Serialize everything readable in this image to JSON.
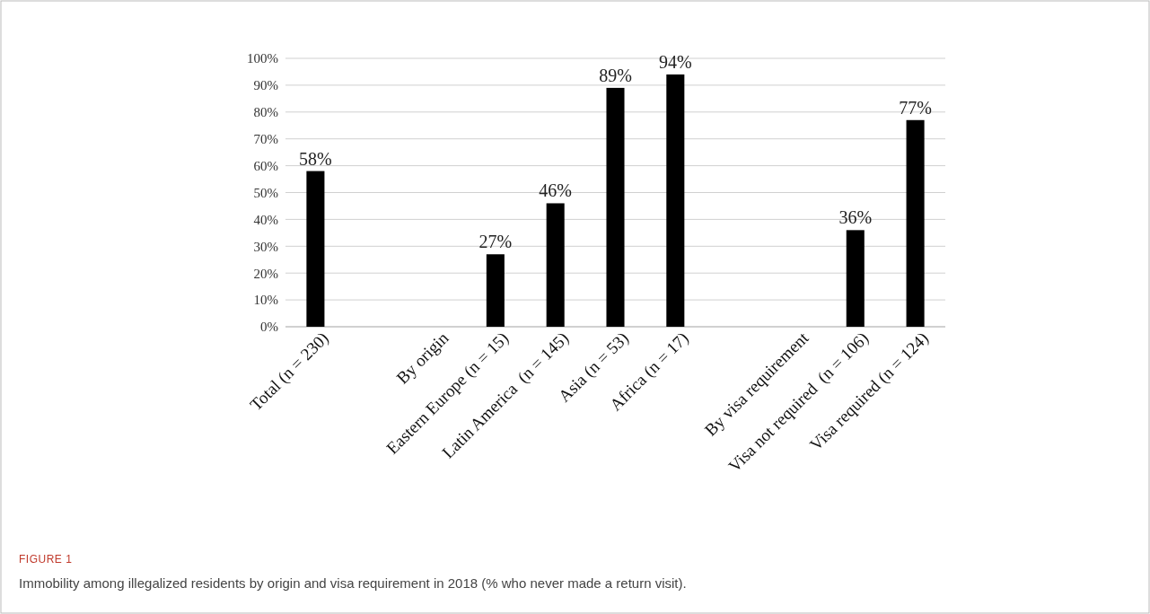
{
  "chart_data": {
    "type": "bar",
    "categories": [
      "Total (n = 230)",
      null,
      "By origin",
      "Eastern Europe (n = 15)",
      "Latin America  (n = 145)",
      "Asia (n = 53)",
      "Africa (n = 17)",
      null,
      "By visa requirement",
      "Visa not required  (n = 106)",
      "Visa required (n = 124)"
    ],
    "values": [
      58,
      null,
      null,
      27,
      46,
      89,
      94,
      null,
      null,
      36,
      77
    ],
    "value_labels": [
      "58%",
      null,
      null,
      "27%",
      "46%",
      "89%",
      "94%",
      null,
      null,
      "36%",
      "77%"
    ],
    "color": "#000000",
    "ylim": [
      0,
      100
    ],
    "yticks": [
      {
        "value": 0,
        "label": "0%"
      },
      {
        "value": 10,
        "label": "10%"
      },
      {
        "value": 20,
        "label": "20%"
      },
      {
        "value": 30,
        "label": "30%"
      },
      {
        "value": 40,
        "label": "40%"
      },
      {
        "value": 50,
        "label": "50%"
      },
      {
        "value": 60,
        "label": "60%"
      },
      {
        "value": 70,
        "label": "70%"
      },
      {
        "value": 80,
        "label": "80%"
      },
      {
        "value": 90,
        "label": "90%"
      },
      {
        "value": 100,
        "label": "100%"
      }
    ],
    "grid": "y",
    "annotations": [
      "FIGURE 1",
      "Immobility among illegalized residents by origin and visa requirement in 2018 (% who never made a return visit)."
    ]
  }
}
